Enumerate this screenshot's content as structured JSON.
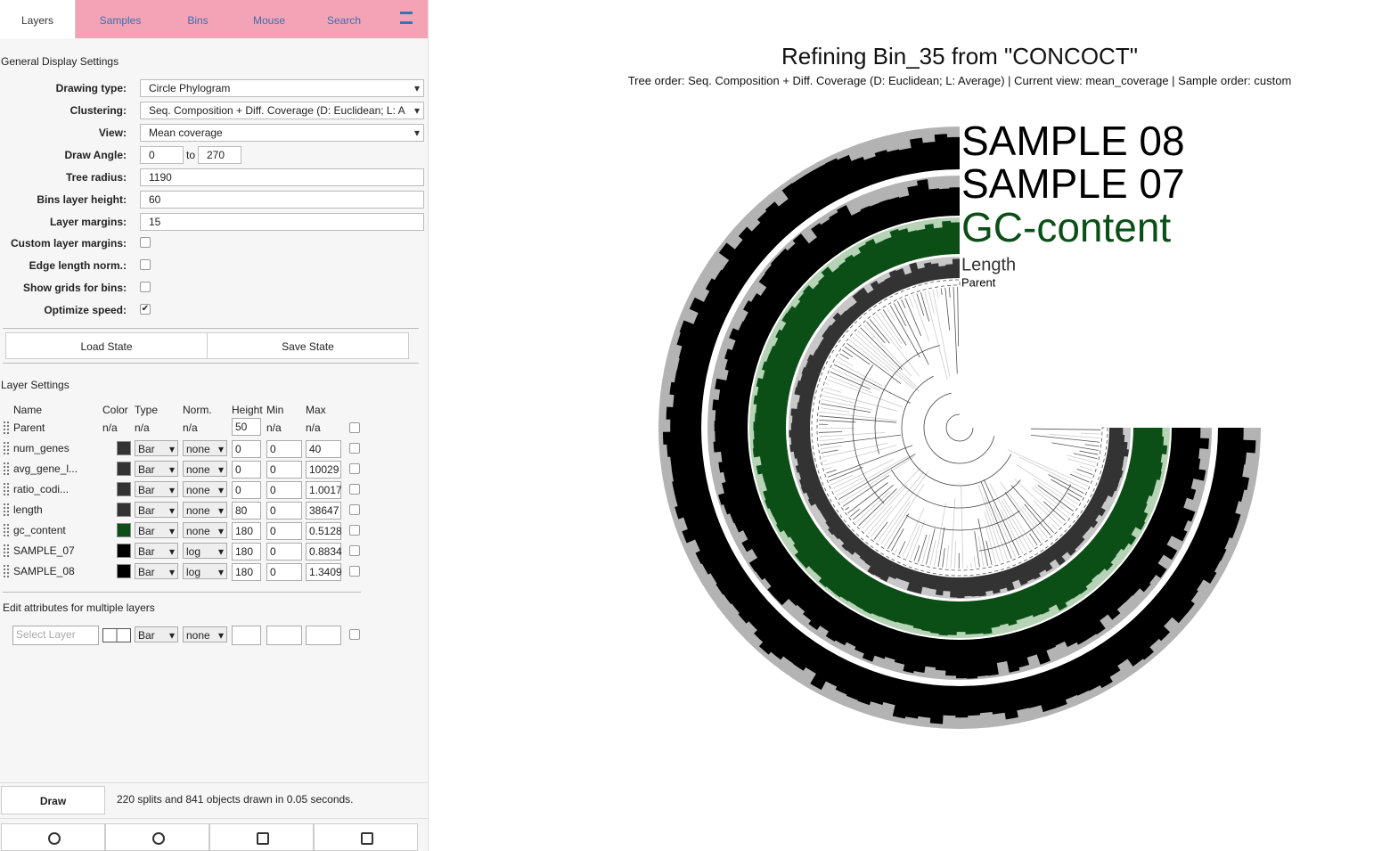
{
  "tabs": [
    "Layers",
    "Samples",
    "Bins",
    "Mouse",
    "Search"
  ],
  "general_settings": {
    "heading": "General Display Settings",
    "fields": [
      {
        "label": "Drawing type:",
        "value": "Circle Phylogram"
      },
      {
        "label": "Clustering:",
        "value": "Seq. Composition + Diff. Coverage (D: Euclidean; L: A"
      },
      {
        "label": "View:",
        "value": "Mean coverage"
      },
      {
        "label": "Draw Angle:",
        "from": "0",
        "to_label": "to",
        "to": "270"
      },
      {
        "label": "Tree radius:",
        "value": "1190"
      },
      {
        "label": "Bins layer height:",
        "value": "60"
      },
      {
        "label": "Layer margins:",
        "value": "15"
      },
      {
        "label": "Custom layer margins:",
        "checked": false
      },
      {
        "label": "Edge length norm.:",
        "checked": false
      },
      {
        "label": "Show grids for bins:",
        "checked": false
      },
      {
        "label": "Optimize speed:",
        "checked": true
      }
    ]
  },
  "state_buttons": [
    "Load State",
    "Save State"
  ],
  "layer_settings": {
    "heading": "Layer Settings",
    "columns": [
      "Name",
      "Color",
      "Type",
      "Norm.",
      "Height",
      "Min",
      "Max"
    ],
    "rows": [
      {
        "name": "Parent",
        "color": "n/a",
        "type": "n/a",
        "norm": "n/a",
        "height": "50",
        "min": "n/a",
        "max": "n/a"
      },
      {
        "name": "num_genes",
        "swatch": "#333333",
        "type": "Bar",
        "norm": "none",
        "height": "0",
        "min": "0",
        "max": "40"
      },
      {
        "name": "avg_gene_l...",
        "swatch": "#333333",
        "type": "Bar",
        "norm": "none",
        "height": "0",
        "min": "0",
        "max": "10029"
      },
      {
        "name": "ratio_codi...",
        "swatch": "#333333",
        "type": "Bar",
        "norm": "none",
        "height": "0",
        "min": "0",
        "max": "1.0017"
      },
      {
        "name": "length",
        "swatch": "#333333",
        "type": "Bar",
        "norm": "none",
        "height": "80",
        "min": "0",
        "max": "38647"
      },
      {
        "name": "gc_content",
        "swatch": "#0b4f17",
        "type": "Bar",
        "norm": "none",
        "height": "180",
        "min": "0",
        "max": "0.5128"
      },
      {
        "name": "SAMPLE_07",
        "swatch": "#000000",
        "type": "Bar",
        "norm": "log",
        "height": "180",
        "min": "0",
        "max": "0.8834"
      },
      {
        "name": "SAMPLE_08",
        "swatch": "#000000",
        "type": "Bar",
        "norm": "log",
        "height": "180",
        "min": "0",
        "max": "1.3409"
      }
    ]
  },
  "multi_edit": {
    "heading": "Edit attributes for multiple layers",
    "placeholder": "Select Layer",
    "type": "Bar",
    "norm": "none"
  },
  "draw_button": "Draw",
  "status": "220 splits and 841 objects drawn in 0.05 seconds.",
  "plot": {
    "title": "Refining Bin_35 from \"CONCOCT\"",
    "subtitle": "Tree order: Seq. Composition + Diff. Coverage (D: Euclidean; L: Average) | Current view: mean_coverage | Sample order: custom",
    "layer_labels": [
      {
        "text": "SAMPLE 08",
        "color": "#000000"
      },
      {
        "text": "SAMPLE 07",
        "color": "#000000"
      },
      {
        "text": "GC-content",
        "color": "#0b4f17"
      },
      {
        "text": "Length",
        "color": "#333333"
      },
      {
        "text": "Parent",
        "color": "#000000"
      }
    ]
  }
}
